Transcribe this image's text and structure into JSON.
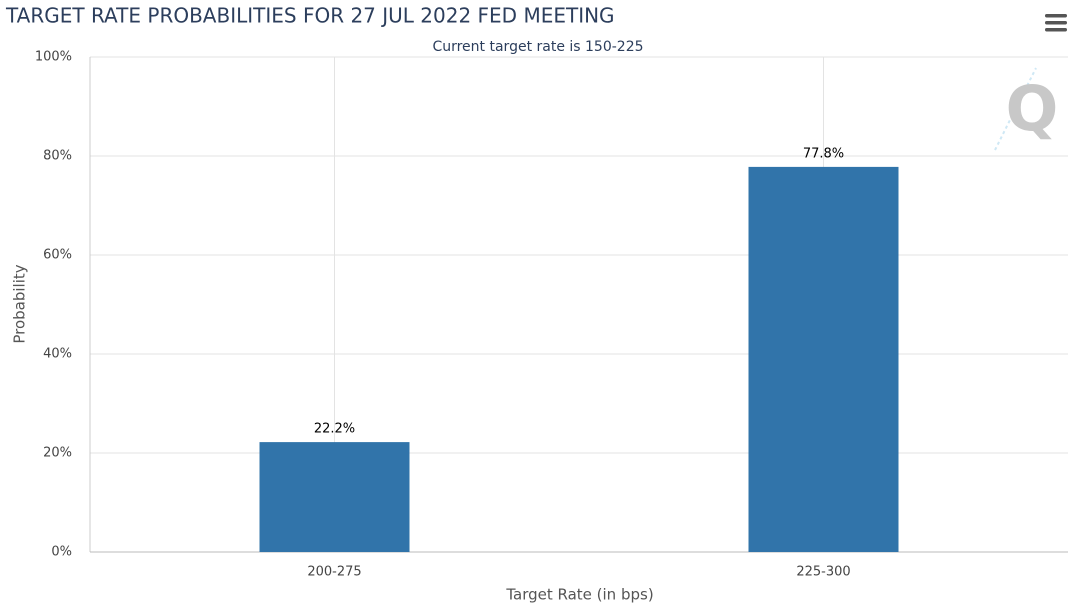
{
  "chart_data": {
    "type": "bar",
    "title": "TARGET RATE PROBABILITIES FOR 27 JUL 2022 FED MEETING",
    "subtitle": "Current target rate is 150-225",
    "x_label": "Target Rate (in bps)",
    "y_label": "Probability",
    "categories": [
      "200-275",
      "225-300"
    ],
    "values": [
      22.2,
      77.8
    ],
    "value_labels": [
      "22.2%",
      "77.8%"
    ],
    "color": "#3174aa",
    "ylim": [
      0,
      100
    ],
    "yticks": [
      {
        "value": 0,
        "label": "0%"
      },
      {
        "value": 20,
        "label": "20%"
      },
      {
        "value": 40,
        "label": "40%"
      },
      {
        "value": 60,
        "label": "60%"
      },
      {
        "value": 80,
        "label": "80%"
      },
      {
        "value": 100,
        "label": "100%"
      }
    ],
    "grid": true,
    "logo": "Q"
  }
}
